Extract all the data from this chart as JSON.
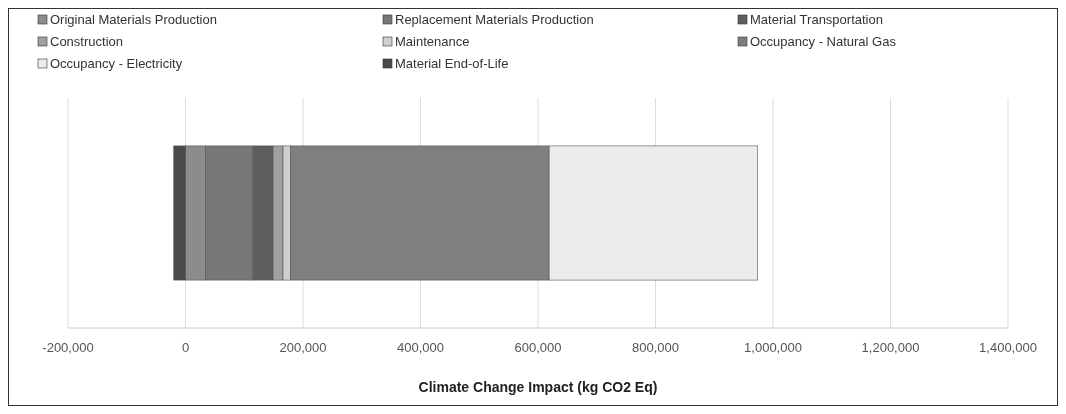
{
  "chart_data": {
    "type": "bar",
    "orientation": "horizontal",
    "stacked": true,
    "categories": [
      null
    ],
    "xlabel": "Climate Change Impact (kg CO2 Eq)",
    "xlim": [
      -200000,
      1400000
    ],
    "xticks": [
      {
        "value": -200000,
        "label": "-200,000"
      },
      0,
      {
        "value": 200000,
        "label": "200,000"
      },
      {
        "value": 400000,
        "label": "400,000"
      },
      {
        "value": 600000,
        "label": "600,000"
      },
      {
        "value": 800000,
        "label": "800,000"
      },
      {
        "value": 1000000,
        "label": "1,000,000"
      },
      {
        "value": 1200000,
        "label": "1,200,000"
      },
      {
        "value": 1400000,
        "label": "1,400,000"
      }
    ],
    "grid": "x",
    "legend": "top",
    "series": [
      {
        "name": "Original Materials Production",
        "color": "#8c8c8c",
        "values": [
          34000
        ]
      },
      {
        "name": "Replacement Materials Production",
        "color": "#777777",
        "values": [
          81000
        ]
      },
      {
        "name": "Material Transportation",
        "color": "#5e5e5e",
        "values": [
          34000
        ]
      },
      {
        "name": "Construction",
        "color": "#a0a0a0",
        "values": [
          17000
        ]
      },
      {
        "name": "Maintenance",
        "color": "#cfcfcf",
        "values": [
          13000
        ]
      },
      {
        "name": "Occupancy - Natural Gas",
        "color": "#7f7f7f",
        "values": [
          440000
        ]
      },
      {
        "name": "Occupancy - Electricity",
        "color": "#ececec",
        "values": [
          355000
        ]
      },
      {
        "name": "Material End-of-Life",
        "color": "#4a4a4a",
        "values": [
          -20000
        ]
      }
    ]
  }
}
